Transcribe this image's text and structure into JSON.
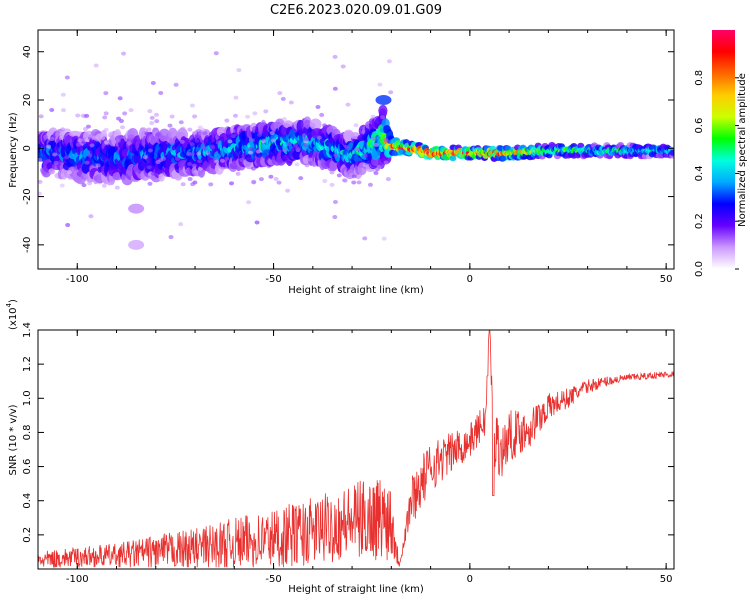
{
  "title": "C2E6.2023.020.09.01.G09",
  "colors": {
    "snr_line": "#e8302e",
    "axis": "#000000"
  },
  "colorbar": {
    "label": "Normalized spectral amplitude",
    "range": [
      0,
      1
    ],
    "ticks": [
      "0.0",
      "0.2",
      "0.4",
      "0.6",
      "0.8"
    ],
    "tick_values": [
      0.0,
      0.2,
      0.4,
      0.6,
      0.8
    ],
    "colormap": [
      "#ffffff",
      "#cc99ff",
      "#6600ff",
      "#0000ff",
      "#00aaff",
      "#00ffdd",
      "#00ff00",
      "#ccff00",
      "#ffcc00",
      "#ff6600",
      "#ff0000",
      "#ff0066"
    ]
  },
  "chart_data": [
    {
      "type": "heatmap",
      "title": "",
      "xlabel": "Height of straight line (km)",
      "ylabel": "Frequency (Hz)",
      "xlim": [
        -110,
        52
      ],
      "ylim": [
        -50,
        49
      ],
      "xticks": [
        -100,
        -50,
        0,
        50
      ],
      "xtick_labels": [
        "-100",
        "-50",
        "0",
        "50"
      ],
      "yticks": [
        -40,
        -20,
        0,
        20,
        40
      ],
      "ytick_labels": [
        "-40",
        "-20",
        "0",
        "20",
        "40"
      ],
      "grid": false,
      "ridge": {
        "x": [
          -110,
          -100,
          -90,
          -80,
          -70,
          -60,
          -50,
          -40,
          -30,
          -24,
          -22,
          -20,
          -15,
          -10,
          0,
          10,
          20,
          30,
          40,
          52
        ],
        "y": [
          -2,
          -3,
          -4,
          -3,
          -2,
          0,
          2,
          3,
          -3,
          2,
          5,
          1,
          0,
          -2,
          -2,
          -2,
          -1,
          -1,
          -1,
          -1
        ],
        "amplitude": [
          0.35,
          0.35,
          0.33,
          0.35,
          0.38,
          0.4,
          0.45,
          0.42,
          0.4,
          0.5,
          0.55,
          0.85,
          0.9,
          0.95,
          0.9,
          0.85,
          0.6,
          0.5,
          0.5,
          0.45
        ],
        "spread_hz": [
          10,
          12,
          12,
          12,
          10,
          10,
          10,
          10,
          10,
          12,
          14,
          4,
          3,
          3,
          3,
          3,
          3,
          3,
          3,
          3
        ]
      },
      "features": [
        {
          "x": -22,
          "y": 20,
          "amplitude": 0.3
        },
        {
          "x": -85,
          "y": -25,
          "amplitude": 0.1
        },
        {
          "x": -85,
          "y": -40,
          "amplitude": 0.08
        }
      ]
    },
    {
      "type": "line",
      "title": "",
      "xlabel": "Height of straight line (km)",
      "ylabel": "SNR (10 * v/v)",
      "scale_label_mantissa": "(x10",
      "scale_label_exp": "4",
      "xlim": [
        -110,
        52
      ],
      "ylim": [
        0.0,
        1.4
      ],
      "xticks": [
        -100,
        -50,
        0,
        50
      ],
      "xtick_labels": [
        "-100",
        "-50",
        "0",
        "50"
      ],
      "yticks": [
        0.2,
        0.4,
        0.6,
        0.8,
        1.0,
        1.2,
        1.4
      ],
      "ytick_labels": [
        "0.2",
        "0.4",
        "0.6",
        "0.8",
        "1.0",
        "1.2",
        "1.4"
      ],
      "grid": false,
      "series": [
        {
          "name": "",
          "envelope_x": [
            -110,
            -100,
            -90,
            -80,
            -70,
            -60,
            -50,
            -40,
            -30,
            -25,
            -20,
            -18,
            -15,
            -10,
            -5,
            0,
            4,
            5,
            6,
            8,
            10,
            15,
            20,
            25,
            30,
            35,
            40,
            45,
            50,
            52
          ],
          "envelope_mean": [
            0.05,
            0.07,
            0.08,
            0.1,
            0.12,
            0.15,
            0.18,
            0.22,
            0.28,
            0.3,
            0.3,
            0.02,
            0.4,
            0.6,
            0.68,
            0.75,
            0.88,
            1.4,
            0.8,
            0.68,
            0.78,
            0.82,
            0.95,
            1.0,
            1.07,
            1.1,
            1.12,
            1.13,
            1.14,
            1.14
          ],
          "envelope_jitter": [
            0.05,
            0.06,
            0.07,
            0.1,
            0.12,
            0.15,
            0.18,
            0.2,
            0.22,
            0.25,
            0.25,
            0.01,
            0.15,
            0.15,
            0.12,
            0.1,
            0.1,
            0.1,
            0.2,
            0.15,
            0.15,
            0.12,
            0.08,
            0.06,
            0.04,
            0.03,
            0.02,
            0.02,
            0.02,
            0.02
          ],
          "peak": {
            "x": 5,
            "y": 1.4
          },
          "dip": {
            "x": 6,
            "y": 0.43
          }
        }
      ]
    }
  ]
}
